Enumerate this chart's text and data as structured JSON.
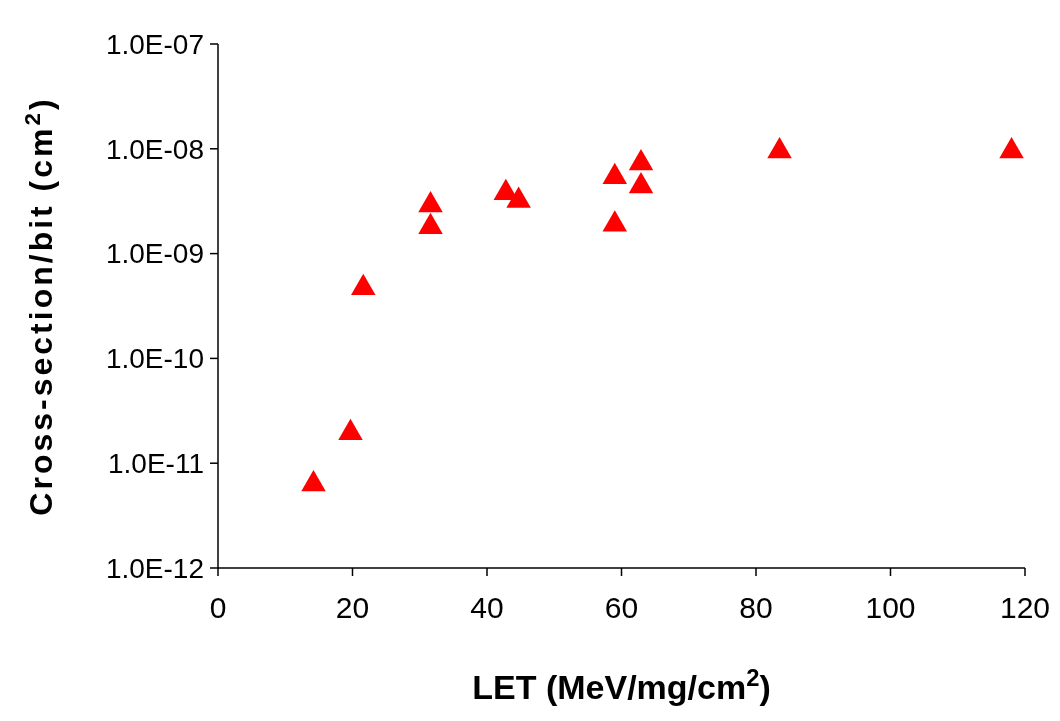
{
  "chart_data": {
    "type": "scatter",
    "xlabel": "LET (MeV/mg/cm$^{2}$)",
    "ylabel": "Cross-section/bit (cm$^{2}$)",
    "log": "y",
    "marker": "triangle",
    "grid": false,
    "xlim": [
      0,
      120
    ],
    "xticks": [
      0,
      20,
      40,
      60,
      80,
      100,
      120
    ],
    "ylim": [
      1e-12,
      1e-07
    ],
    "yticks": [
      {
        "value": 1e-12,
        "label": "1.0E-12"
      },
      {
        "value": 1e-11,
        "label": "1.0E-11"
      },
      {
        "value": 1e-10,
        "label": "1.0E-10"
      },
      {
        "value": 1e-09,
        "label": "1.0E-09"
      },
      {
        "value": 1e-08,
        "label": "1.0E-08"
      },
      {
        "value": 1e-07,
        "label": "1.0E-07"
      }
    ],
    "series": [
      {
        "color": "#ff0000",
        "x": [
          14.2,
          19.7,
          21.6,
          31.6,
          31.6,
          42.8,
          44.7,
          59,
          59,
          62.9,
          62.9,
          83.5,
          118
        ],
        "values": [
          6.3e-12,
          1.95e-11,
          4.7e-10,
          2.9e-09,
          1.8e-09,
          3.8e-09,
          3.2e-09,
          5.4e-09,
          1.9e-09,
          7.3e-09,
          4.4e-09,
          9.5e-09,
          9.5e-09
        ]
      }
    ]
  }
}
